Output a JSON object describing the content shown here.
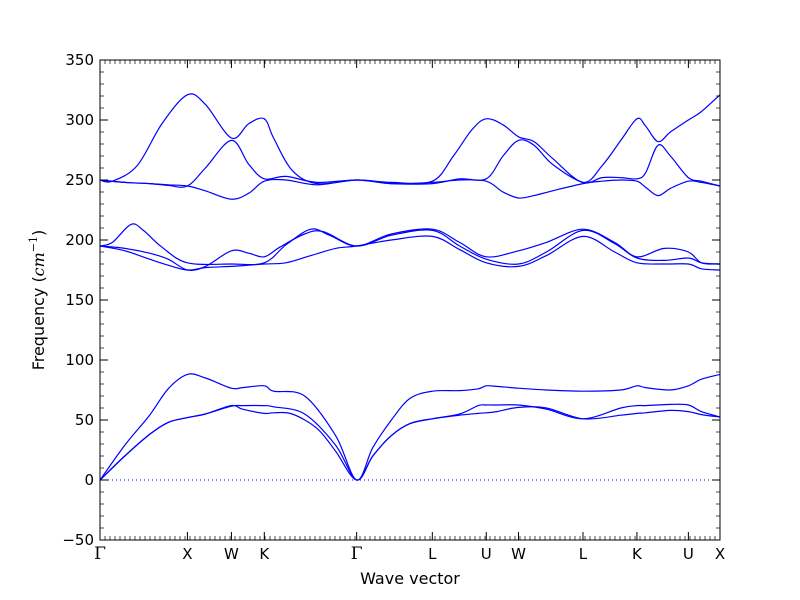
{
  "chart_data": {
    "type": "line",
    "xlabel": "Wave vector",
    "ylabel": {
      "prefix": "Frequency (",
      "unit_var": "cm",
      "unit_exp": "−1",
      "suffix": ")"
    },
    "ylim": [
      -50,
      350
    ],
    "y_ticks": [
      -50,
      0,
      50,
      100,
      150,
      200,
      250,
      300,
      350
    ],
    "y_tick_labels": [
      "−50",
      "0",
      "50",
      "100",
      "150",
      "200",
      "250",
      "300",
      "350"
    ],
    "xlim": [
      0,
      100
    ],
    "k_points": [
      {
        "label": "Γ",
        "x": 0
      },
      {
        "label": "X",
        "x": 14.1
      },
      {
        "label": "W",
        "x": 21.2
      },
      {
        "label": "K",
        "x": 26.5
      },
      {
        "label": "Γ",
        "x": 41.4
      },
      {
        "label": "L",
        "x": 53.6
      },
      {
        "label": "U",
        "x": 62.3
      },
      {
        "label": "W",
        "x": 67.5
      },
      {
        "label": "L",
        "x": 77.9
      },
      {
        "label": "K",
        "x": 86.6
      },
      {
        "label": "U",
        "x": 94.9
      },
      {
        "label": "X",
        "x": 100
      }
    ],
    "line_color": "#0000ff",
    "zero_line": {
      "y": 0,
      "style": "dotted",
      "color": "#0000ff"
    },
    "grid": false,
    "series": [
      {
        "points": [
          [
            0,
            0
          ],
          [
            4,
            29
          ],
          [
            8,
            54
          ],
          [
            11,
            76
          ],
          [
            14.1,
            88
          ],
          [
            17,
            85
          ],
          [
            21.2,
            76.5
          ],
          [
            23,
            77
          ],
          [
            26.5,
            78.5
          ],
          [
            28,
            74
          ],
          [
            33,
            70
          ],
          [
            38,
            37
          ],
          [
            41.4,
            0
          ],
          [
            44,
            27
          ],
          [
            47,
            50
          ],
          [
            50,
            68
          ],
          [
            53.6,
            74
          ],
          [
            58,
            74.5
          ],
          [
            61,
            76
          ],
          [
            62.3,
            78.5
          ],
          [
            64,
            78
          ],
          [
            67.5,
            76.5
          ],
          [
            72,
            75
          ],
          [
            77.9,
            74
          ],
          [
            84,
            75
          ],
          [
            86.6,
            78.5
          ],
          [
            88,
            77
          ],
          [
            92,
            75
          ],
          [
            94.9,
            78.5
          ],
          [
            97,
            84
          ],
          [
            100,
            88
          ]
        ]
      },
      {
        "points": [
          [
            0,
            0
          ],
          [
            4,
            20
          ],
          [
            8,
            38
          ],
          [
            11,
            48
          ],
          [
            14.1,
            52
          ],
          [
            17,
            55
          ],
          [
            21.2,
            61.5
          ],
          [
            23,
            62
          ],
          [
            26.5,
            62
          ],
          [
            28,
            61
          ],
          [
            33,
            55
          ],
          [
            38,
            29
          ],
          [
            41.4,
            0
          ],
          [
            44,
            20
          ],
          [
            47,
            37
          ],
          [
            50,
            47
          ],
          [
            53.6,
            51
          ],
          [
            58,
            55
          ],
          [
            61,
            62
          ],
          [
            62.3,
            62.5
          ],
          [
            64,
            62.5
          ],
          [
            67.5,
            62.5
          ],
          [
            72,
            59
          ],
          [
            77.9,
            51
          ],
          [
            84,
            60
          ],
          [
            86.6,
            62
          ],
          [
            88,
            62
          ],
          [
            92,
            63
          ],
          [
            94.9,
            62.5
          ],
          [
            97,
            57
          ],
          [
            100,
            52.5
          ]
        ]
      },
      {
        "points": [
          [
            0,
            0
          ],
          [
            4,
            20
          ],
          [
            8,
            38
          ],
          [
            11,
            48
          ],
          [
            14.1,
            52
          ],
          [
            17,
            55
          ],
          [
            21.2,
            62
          ],
          [
            23,
            59
          ],
          [
            26.5,
            55.5
          ],
          [
            28,
            56
          ],
          [
            31,
            55
          ],
          [
            35,
            43
          ],
          [
            38,
            24
          ],
          [
            41.4,
            0
          ],
          [
            44,
            20
          ],
          [
            47,
            37
          ],
          [
            50,
            47
          ],
          [
            53.6,
            51
          ],
          [
            58,
            54
          ],
          [
            61,
            55.5
          ],
          [
            62.3,
            56
          ],
          [
            64,
            57
          ],
          [
            67.5,
            60.5
          ],
          [
            72,
            60
          ],
          [
            77.9,
            51
          ],
          [
            84,
            54
          ],
          [
            86.6,
            55.5
          ],
          [
            88,
            56
          ],
          [
            92,
            58
          ],
          [
            94.9,
            57
          ],
          [
            97,
            54.5
          ],
          [
            100,
            52.5
          ]
        ]
      },
      {
        "points": [
          [
            0,
            195
          ],
          [
            2,
            198
          ],
          [
            5,
            213
          ],
          [
            7,
            208
          ],
          [
            10,
            194
          ],
          [
            14.1,
            181
          ],
          [
            21.2,
            180
          ],
          [
            26.5,
            181
          ],
          [
            30,
            196
          ],
          [
            34,
            209
          ],
          [
            37,
            204
          ],
          [
            41.4,
            195
          ],
          [
            47,
            205
          ],
          [
            53.6,
            209
          ],
          [
            58,
            198
          ],
          [
            62.3,
            186
          ],
          [
            67.5,
            191
          ],
          [
            72,
            198
          ],
          [
            77.9,
            209
          ],
          [
            83,
            198
          ],
          [
            86.6,
            186
          ],
          [
            91,
            193
          ],
          [
            94.9,
            190
          ],
          [
            97,
            181
          ],
          [
            100,
            180
          ]
        ]
      },
      {
        "points": [
          [
            0,
            195
          ],
          [
            4,
            193
          ],
          [
            8,
            189
          ],
          [
            11,
            184
          ],
          [
            14.1,
            175
          ],
          [
            17,
            178
          ],
          [
            21.2,
            191
          ],
          [
            24,
            189
          ],
          [
            26.5,
            186
          ],
          [
            29,
            194
          ],
          [
            33,
            205
          ],
          [
            36,
            207
          ],
          [
            41.4,
            195
          ],
          [
            47,
            204
          ],
          [
            53.6,
            208
          ],
          [
            58,
            195
          ],
          [
            62.3,
            184
          ],
          [
            67.5,
            180
          ],
          [
            72,
            190
          ],
          [
            77.9,
            208
          ],
          [
            83,
            197
          ],
          [
            86.6,
            185
          ],
          [
            91,
            183
          ],
          [
            94.9,
            185
          ],
          [
            97,
            181
          ],
          [
            100,
            180
          ]
        ]
      },
      {
        "points": [
          [
            0,
            195
          ],
          [
            4,
            191
          ],
          [
            8,
            184
          ],
          [
            11,
            179
          ],
          [
            14.1,
            175
          ],
          [
            17,
            177
          ],
          [
            21.2,
            178
          ],
          [
            24,
            179
          ],
          [
            26.5,
            180
          ],
          [
            30,
            181
          ],
          [
            34,
            187
          ],
          [
            38,
            193
          ],
          [
            41.4,
            195
          ],
          [
            47,
            200
          ],
          [
            53.6,
            203
          ],
          [
            58,
            192
          ],
          [
            62.3,
            181
          ],
          [
            67.5,
            178
          ],
          [
            72,
            187
          ],
          [
            77.9,
            203
          ],
          [
            83,
            190
          ],
          [
            86.6,
            181
          ],
          [
            91,
            180
          ],
          [
            94.9,
            180
          ],
          [
            97,
            176
          ],
          [
            100,
            175
          ]
        ]
      },
      {
        "points": [
          [
            0,
            250
          ],
          [
            2,
            249
          ],
          [
            6,
            262
          ],
          [
            10,
            297
          ],
          [
            14.1,
            321
          ],
          [
            17,
            313
          ],
          [
            21.2,
            285
          ],
          [
            24,
            297
          ],
          [
            26.5,
            301
          ],
          [
            28,
            285
          ],
          [
            31,
            258
          ],
          [
            35,
            247
          ],
          [
            41.4,
            250
          ],
          [
            47,
            248
          ],
          [
            53.6,
            249
          ],
          [
            57,
            270
          ],
          [
            60,
            292
          ],
          [
            62.3,
            301
          ],
          [
            65,
            296
          ],
          [
            67.5,
            286
          ],
          [
            70,
            282
          ],
          [
            73,
            268
          ],
          [
            77.9,
            248
          ],
          [
            81,
            262
          ],
          [
            84,
            283
          ],
          [
            86.6,
            301
          ],
          [
            88,
            295
          ],
          [
            90,
            282
          ],
          [
            92,
            290
          ],
          [
            94.9,
            300
          ],
          [
            97,
            307
          ],
          [
            100,
            321
          ]
        ]
      },
      {
        "points": [
          [
            0,
            250
          ],
          [
            4,
            248
          ],
          [
            8,
            247
          ],
          [
            11,
            245.5
          ],
          [
            14.1,
            245
          ],
          [
            17,
            260
          ],
          [
            21.2,
            283
          ],
          [
            24,
            263
          ],
          [
            26.5,
            251
          ],
          [
            30,
            253
          ],
          [
            35,
            248
          ],
          [
            41.4,
            250
          ],
          [
            47,
            247
          ],
          [
            53.6,
            247
          ],
          [
            58,
            251
          ],
          [
            62.3,
            251
          ],
          [
            65,
            270
          ],
          [
            67.5,
            283
          ],
          [
            70,
            279
          ],
          [
            73,
            263
          ],
          [
            77.9,
            248
          ],
          [
            81,
            252
          ],
          [
            84,
            252
          ],
          [
            86.6,
            251
          ],
          [
            88,
            256
          ],
          [
            90,
            279
          ],
          [
            92,
            270
          ],
          [
            94.9,
            252
          ],
          [
            97,
            249
          ],
          [
            100,
            245
          ]
        ]
      },
      {
        "points": [
          [
            0,
            250
          ],
          [
            4,
            248
          ],
          [
            8,
            247
          ],
          [
            11,
            246
          ],
          [
            14.1,
            245
          ],
          [
            17,
            241
          ],
          [
            21.2,
            234
          ],
          [
            24,
            239
          ],
          [
            26.5,
            249
          ],
          [
            30,
            250
          ],
          [
            35,
            246
          ],
          [
            41.4,
            250
          ],
          [
            47,
            247
          ],
          [
            53.6,
            248
          ],
          [
            58,
            250
          ],
          [
            62.3,
            249
          ],
          [
            65,
            240
          ],
          [
            67.5,
            235
          ],
          [
            70,
            237
          ],
          [
            73,
            241
          ],
          [
            77.9,
            247
          ],
          [
            81,
            249
          ],
          [
            84,
            250
          ],
          [
            86.6,
            249
          ],
          [
            88,
            244
          ],
          [
            90,
            237
          ],
          [
            92,
            243
          ],
          [
            94.9,
            249
          ],
          [
            97,
            248
          ],
          [
            100,
            245
          ]
        ]
      }
    ]
  }
}
